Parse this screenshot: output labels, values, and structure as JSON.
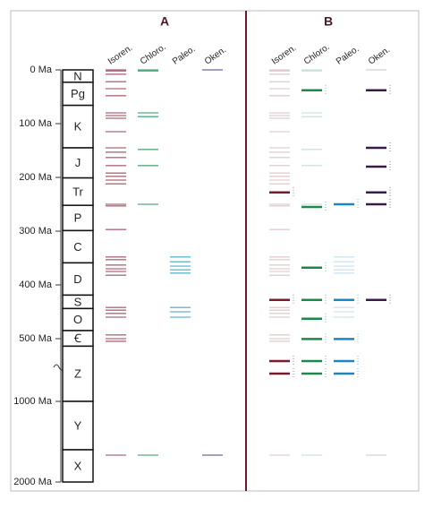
{
  "chart_data": {
    "type": "event",
    "yticks": [
      {
        "value": 0,
        "label": "0 Ma"
      },
      {
        "value": 100,
        "label": "100 Ma"
      },
      {
        "value": 200,
        "label": "200 Ma"
      },
      {
        "value": 300,
        "label": "300 Ma"
      },
      {
        "value": 400,
        "label": "400 Ma"
      },
      {
        "value": 500,
        "label": "500 Ma"
      },
      {
        "value": 1000,
        "label": "1000 Ma"
      },
      {
        "value": 2000,
        "label": "2000 Ma"
      }
    ],
    "ylim": [
      0,
      2000
    ],
    "periods": [
      {
        "label": "N",
        "start": 0,
        "end": 23
      },
      {
        "label": "Pg",
        "start": 23,
        "end": 66
      },
      {
        "label": "K",
        "start": 66,
        "end": 145
      },
      {
        "label": "J",
        "start": 145,
        "end": 201
      },
      {
        "label": "Tr",
        "start": 201,
        "end": 252
      },
      {
        "label": "P",
        "start": 252,
        "end": 299
      },
      {
        "label": "C",
        "start": 299,
        "end": 359
      },
      {
        "label": "D",
        "start": 359,
        "end": 419
      },
      {
        "label": "S",
        "start": 419,
        "end": 444
      },
      {
        "label": "O",
        "start": 444,
        "end": 485
      },
      {
        "label": "Ꞓ",
        "start": 485,
        "end": 560
      },
      {
        "label": "Z",
        "start": 560,
        "end": 1000
      },
      {
        "label": "Y",
        "start": 1000,
        "end": 1600
      },
      {
        "label": "X",
        "start": 1600,
        "end": 2000
      }
    ],
    "panels": [
      {
        "title": "A",
        "series": [
          {
            "name": "Isoren.",
            "color": "#a05060",
            "values": [
              0,
              2,
              8,
              22,
              35,
              48,
              80,
              85,
              90,
              115,
              145,
              153,
              163,
              178,
              192,
              198,
              205,
              212,
              250,
              253,
              297,
              348,
              353,
              363,
              370,
              375,
              382,
              442,
              447,
              453,
              460,
              493,
              500,
              521,
              1667
            ]
          },
          {
            "name": "Chloro.",
            "color": "#3a9a6a",
            "values": [
              0,
              2,
              80,
              87,
              148,
              178,
              250,
              1667
            ]
          },
          {
            "name": "Paleo.",
            "color": "#4aa8c8",
            "values": [
              348,
              357,
              365,
              372,
              378,
              442,
              450,
              460
            ]
          },
          {
            "name": "Oken.",
            "color": "#5a4a8a",
            "values": [
              0,
              1667
            ]
          }
        ]
      },
      {
        "title": "B",
        "series": [
          {
            "name": "Isoren.",
            "color": "#7a1a2a",
            "values": [
              0,
              2,
              8,
              22,
              35,
              48,
              80,
              85,
              90,
              115,
              145,
              153,
              163,
              178,
              192,
              198,
              205,
              212,
              250,
              253,
              297,
              348,
              353,
              363,
              370,
              375,
              382,
              442,
              447,
              453,
              460,
              493,
              500,
              521,
              1667
            ],
            "bold": [
              228,
              428,
              679,
              779
            ]
          },
          {
            "name": "Chloro.",
            "color": "#1a8a4a",
            "values": [
              0,
              2,
              80,
              87,
              148,
              178,
              250,
              1667
            ],
            "bold": [
              38,
              255,
              368,
              428,
              463,
              503,
              679,
              779
            ]
          },
          {
            "name": "Paleo.",
            "color": "#1a88c0",
            "values": [
              348,
              357,
              365,
              372,
              378,
              442,
              450,
              460
            ],
            "bold": [
              250,
              428,
              503,
              679,
              779
            ]
          },
          {
            "name": "Oken.",
            "color": "#3a1a4a",
            "values": [
              0,
              1667
            ],
            "bold": [
              38,
              145,
              180,
              228,
              250,
              428
            ]
          }
        ]
      }
    ]
  }
}
